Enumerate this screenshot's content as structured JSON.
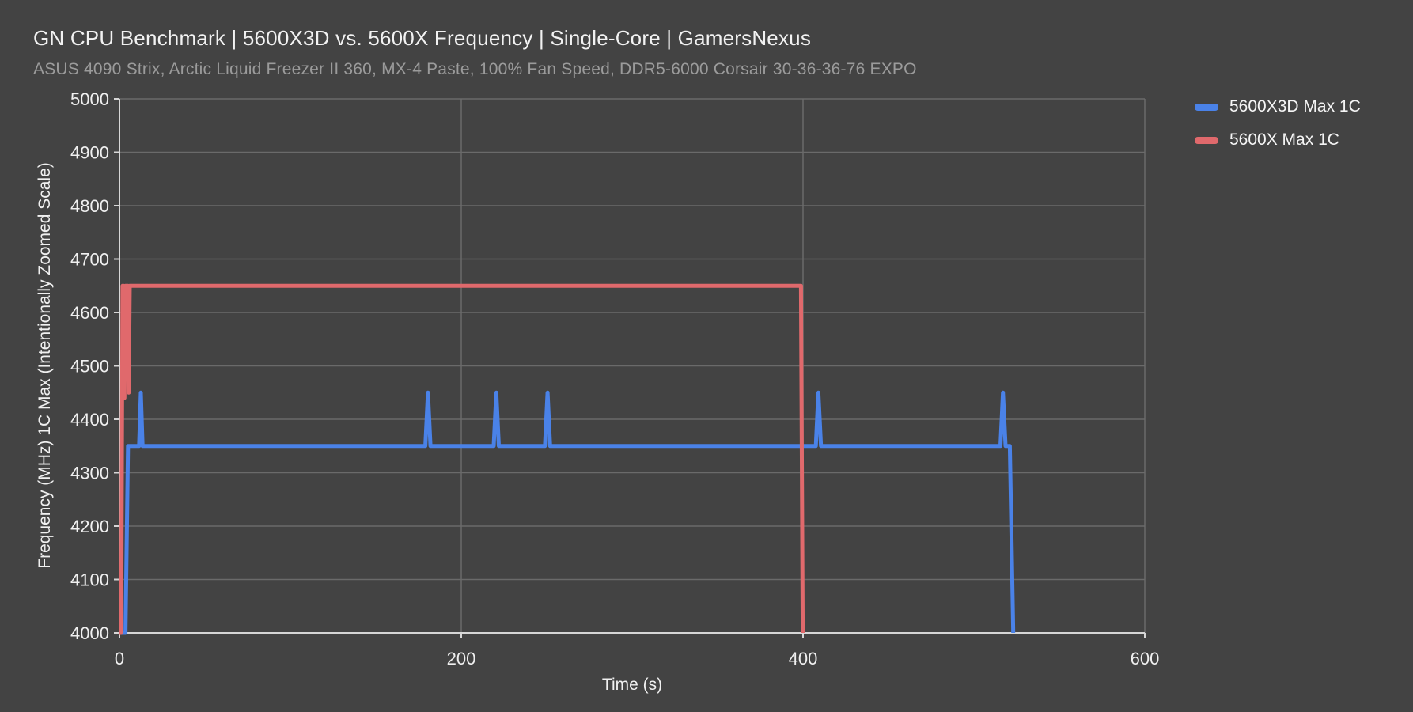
{
  "colors": {
    "background": "#434343",
    "grid": "#6a6a6a",
    "axis": "#d6d6d6",
    "title": "#f2f2f2",
    "subtitle": "#9b9b9b",
    "tick_label": "#f0f0f0",
    "axis_label": "#f0f0f0",
    "legend_label": "#f5f5f5"
  },
  "chart_data": {
    "type": "line",
    "title": "GN CPU Benchmark | 5600X3D vs. 5600X Frequency | Single-Core | GamersNexus",
    "subtitle": "ASUS 4090 Strix, Arctic Liquid Freezer II 360, MX-4 Paste, 100% Fan Speed, DDR5-6000 Corsair 30-36-36-76 EXPO",
    "xlabel": "Time (s)",
    "ylabel": "Frequency (MHz) 1C Max (Intentionally Zoomed Scale)",
    "xlim": [
      0,
      600
    ],
    "ylim": [
      4000,
      5000
    ],
    "x_ticks": [
      0,
      200,
      400,
      600
    ],
    "y_ticks": [
      4000,
      4100,
      4200,
      4300,
      4400,
      4500,
      4600,
      4700,
      4800,
      4900,
      5000
    ],
    "grid": true,
    "legend_position": "right-top",
    "series": [
      {
        "name": "5600X3D Max 1C",
        "color": "#4a82e8",
        "steady_value": 4350,
        "points": [
          [
            0,
            4000
          ],
          [
            3.5,
            4000
          ],
          [
            5,
            4350
          ],
          [
            11.5,
            4350
          ],
          [
            12.5,
            4450
          ],
          [
            13.5,
            4350
          ],
          [
            179,
            4350
          ],
          [
            180.5,
            4450
          ],
          [
            182,
            4350
          ],
          [
            219,
            4350
          ],
          [
            220.5,
            4450
          ],
          [
            222,
            4350
          ],
          [
            249,
            4350
          ],
          [
            250.5,
            4450
          ],
          [
            252,
            4350
          ],
          [
            407.5,
            4350
          ],
          [
            409,
            4450
          ],
          [
            410.5,
            4350
          ],
          [
            515.5,
            4350
          ],
          [
            517,
            4450
          ],
          [
            518.5,
            4350
          ],
          [
            521,
            4350
          ],
          [
            523,
            4000
          ]
        ]
      },
      {
        "name": "5600X Max 1C",
        "color": "#e0696c",
        "steady_value": 4650,
        "points": [
          [
            0,
            4000
          ],
          [
            1,
            4000
          ],
          [
            1.8,
            4650
          ],
          [
            2.3,
            4650
          ],
          [
            2.9,
            4440
          ],
          [
            3.5,
            4650
          ],
          [
            4.9,
            4650
          ],
          [
            5.4,
            4450
          ],
          [
            6,
            4650
          ],
          [
            398.8,
            4650
          ],
          [
            399.8,
            4000
          ]
        ]
      }
    ]
  }
}
